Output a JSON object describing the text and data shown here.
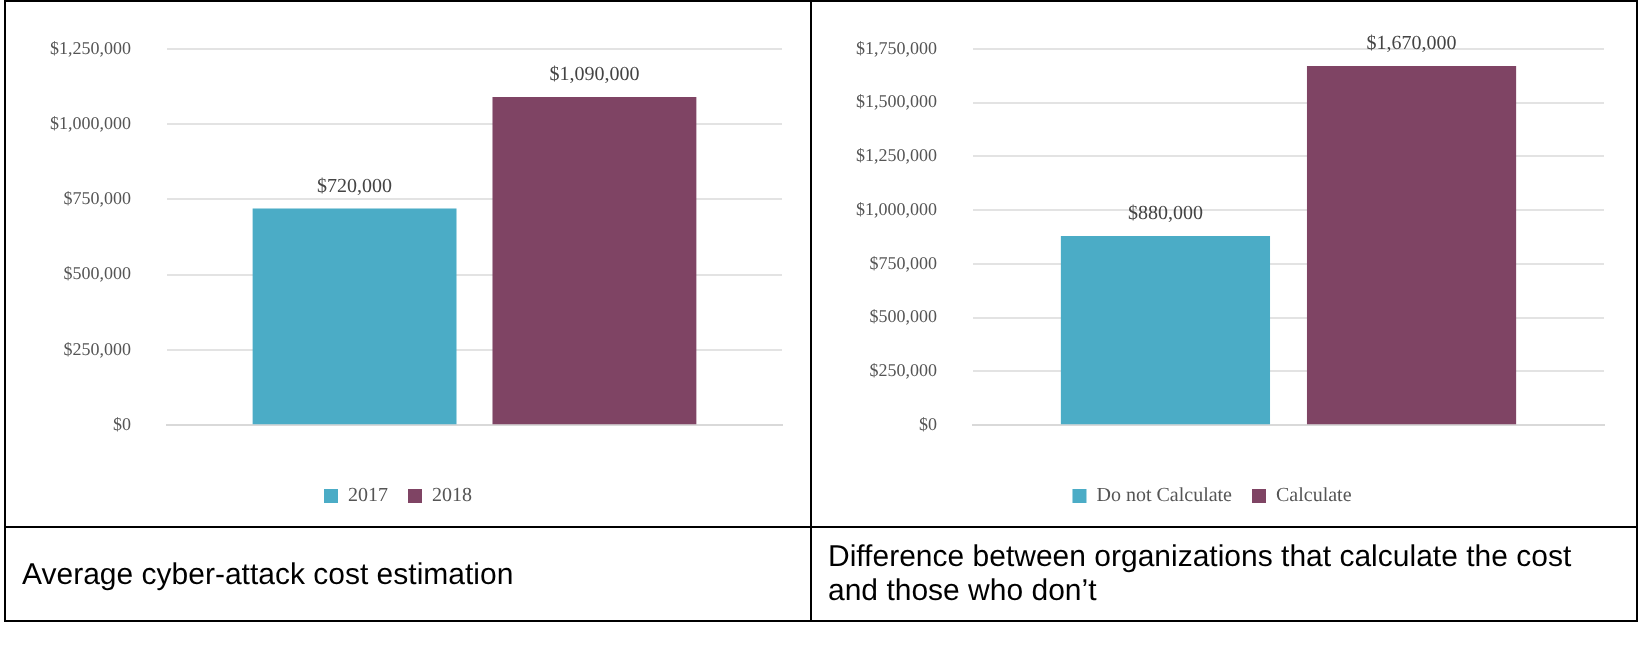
{
  "chart_data": [
    {
      "type": "bar",
      "categories": [
        null
      ],
      "series": [
        {
          "name": "2017",
          "color": "#4bacc6",
          "values": [
            720000
          ],
          "value_labels": [
            "$720,000"
          ]
        },
        {
          "name": "2018",
          "color": "#7f4464",
          "values": [
            1090000
          ],
          "value_labels": [
            "$1,090,000"
          ]
        }
      ],
      "ylim": [
        0,
        1250000
      ],
      "yticks": [
        {
          "value": 0,
          "label": "$0"
        },
        {
          "value": 250000,
          "label": "$250,000"
        },
        {
          "value": 500000,
          "label": "$500,000"
        },
        {
          "value": 750000,
          "label": "$750,000"
        },
        {
          "value": 1000000,
          "label": "$1,000,000"
        },
        {
          "value": 1250000,
          "label": "$1,250,000"
        }
      ],
      "grid": "y",
      "legend": "bottom",
      "annotations": [
        "Average cyber-attack cost estimation"
      ]
    },
    {
      "type": "bar",
      "categories": [
        null
      ],
      "series": [
        {
          "name": "Do not Calculate",
          "color": "#4bacc6",
          "values": [
            880000
          ],
          "value_labels": [
            "$880,000"
          ]
        },
        {
          "name": "Calculate",
          "color": "#7f4464",
          "values": [
            1670000
          ],
          "value_labels": [
            "$1,670,000"
          ]
        }
      ],
      "ylim": [
        0,
        1750000
      ],
      "yticks": [
        {
          "value": 0,
          "label": "$0"
        },
        {
          "value": 250000,
          "label": "$250,000"
        },
        {
          "value": 500000,
          "label": "$500,000"
        },
        {
          "value": 750000,
          "label": "$750,000"
        },
        {
          "value": 1000000,
          "label": "$1,000,000"
        },
        {
          "value": 1250000,
          "label": "$1,250,000"
        },
        {
          "value": 1500000,
          "label": "$1,500,000"
        },
        {
          "value": 1750000,
          "label": "$1,750,000"
        }
      ],
      "grid": "y",
      "legend": "bottom",
      "annotations": [
        "Difference between organizations that calculate the cost and those who don’t"
      ]
    }
  ]
}
